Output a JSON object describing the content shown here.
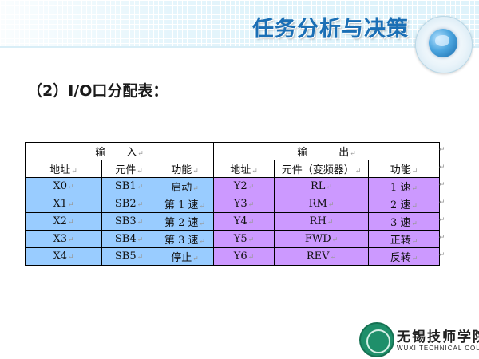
{
  "header": {
    "title": "任务分析与决策"
  },
  "section": {
    "subtitle": "（2）I/O口分配表："
  },
  "table": {
    "group_headers": {
      "input": "输　　入",
      "output": "输　　　出"
    },
    "input_columns": [
      "地址",
      "元件",
      "功能"
    ],
    "output_columns": [
      "地址",
      "元件（变频器）",
      "功能"
    ],
    "rows": [
      {
        "in_addr": "X0",
        "in_elem": "SB1",
        "in_func": "启动",
        "out_addr": "Y2",
        "out_elem": "RL",
        "out_func": "1 速"
      },
      {
        "in_addr": "X1",
        "in_elem": "SB2",
        "in_func": "第 1 速",
        "out_addr": "Y3",
        "out_elem": "RM",
        "out_func": "2 速"
      },
      {
        "in_addr": "X2",
        "in_elem": "SB3",
        "in_func": "第 2 速",
        "out_addr": "Y4",
        "out_elem": "RH",
        "out_func": "3 速"
      },
      {
        "in_addr": "X3",
        "in_elem": "SB4",
        "in_func": "第 3 速",
        "out_addr": "Y5",
        "out_elem": "FWD",
        "out_func": "正转"
      },
      {
        "in_addr": "X4",
        "in_elem": "SB5",
        "in_func": "停止",
        "out_addr": "Y6",
        "out_elem": "REV",
        "out_func": "反转"
      }
    ],
    "colors": {
      "input_fill": "#99ccff",
      "output_fill": "#cc99ff"
    },
    "paragraph_mark": "↵"
  },
  "footer": {
    "logo_cn": "无锡技师学院",
    "logo_en": "WUXI TECHNICAL COLLEGE"
  }
}
